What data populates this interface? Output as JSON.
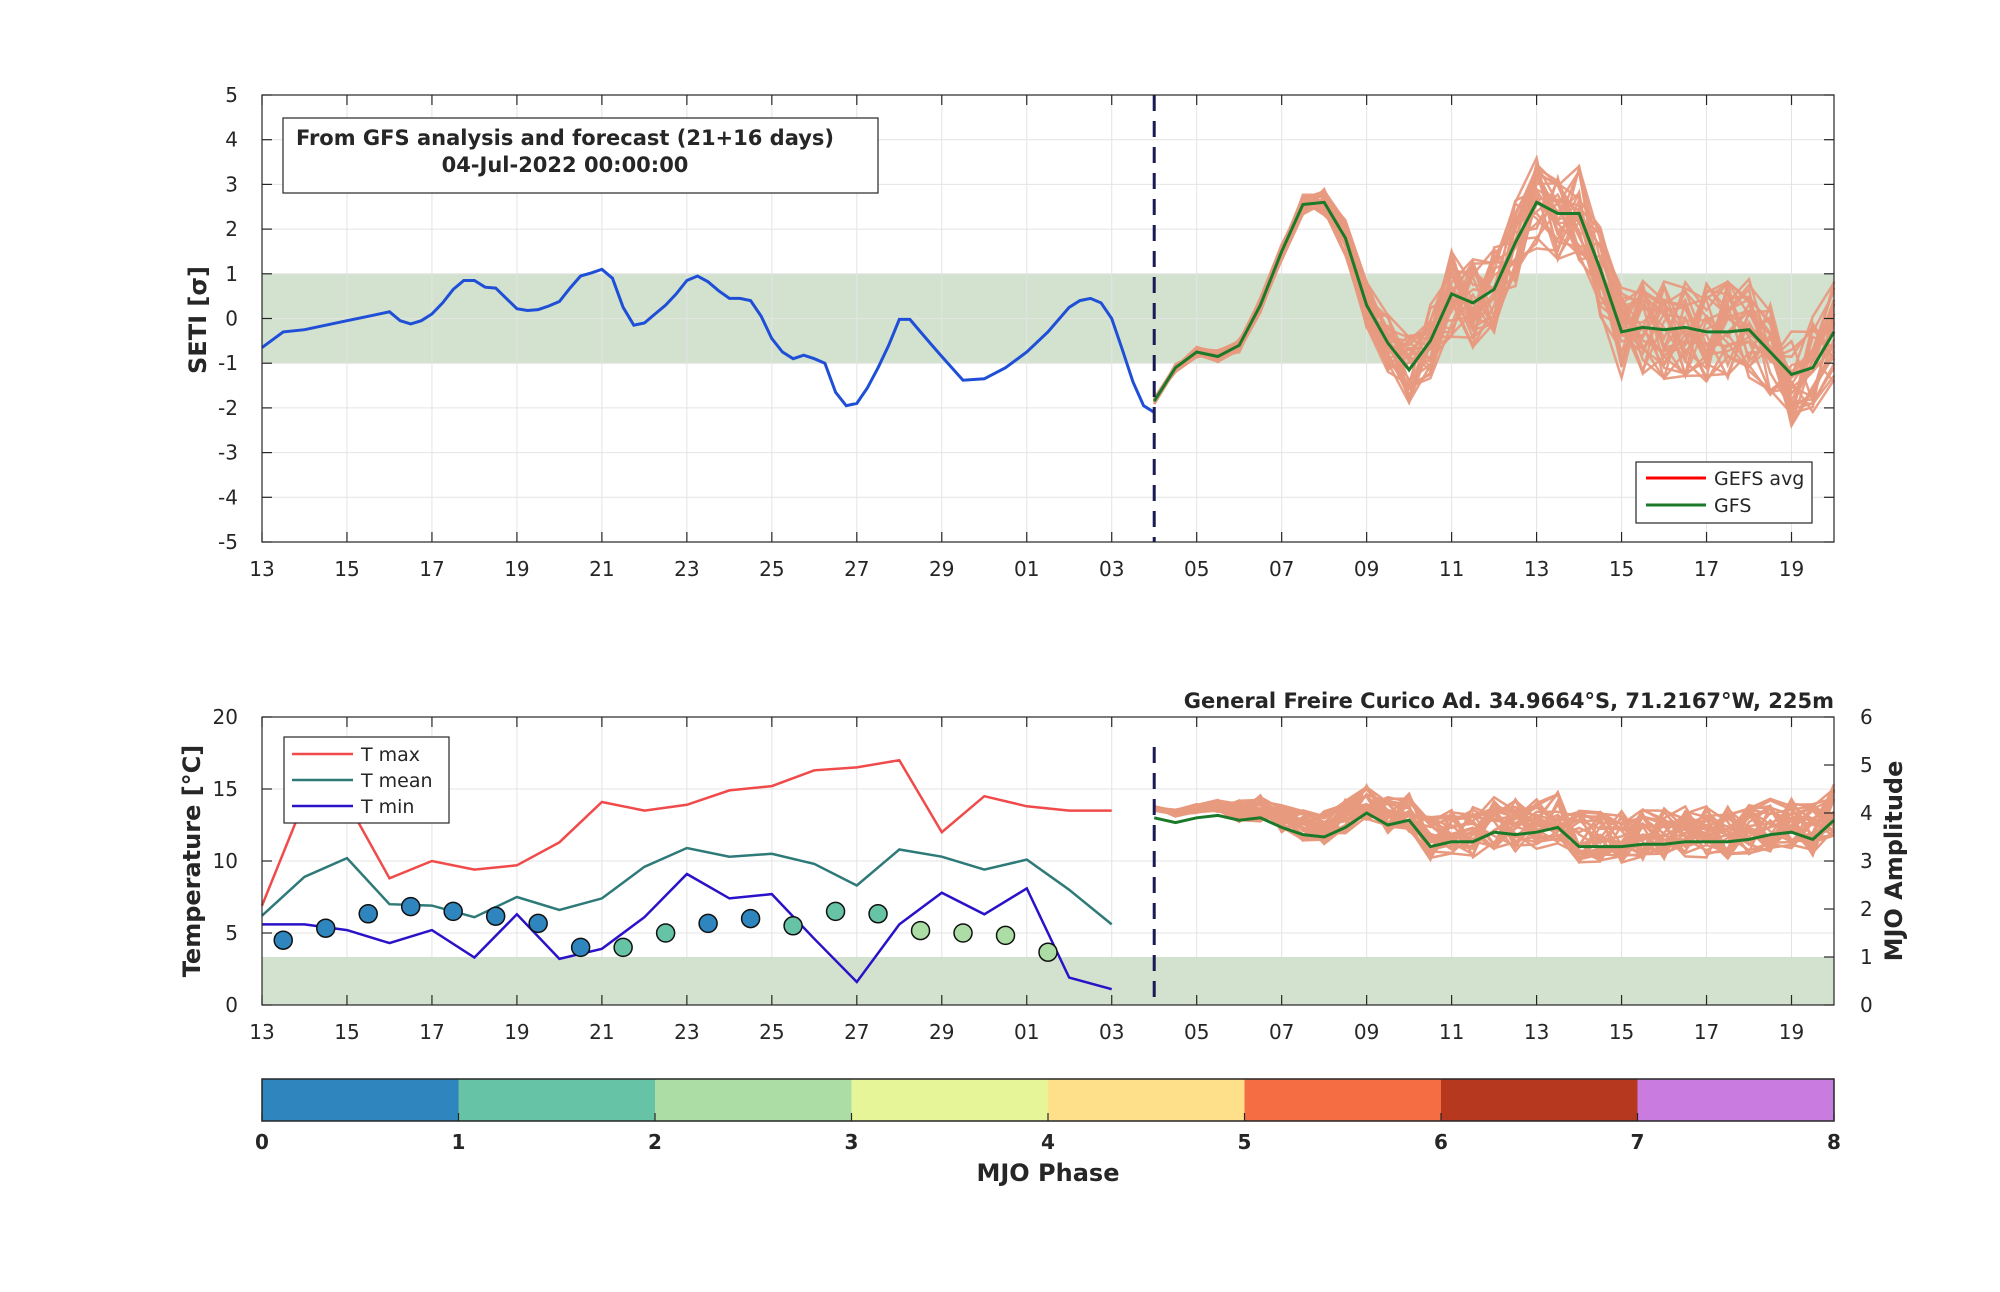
{
  "colors": {
    "history_seti": "#1f4fd6",
    "ensemble": "#e89a7f",
    "gfs": "#1a7a2a",
    "gefs_avg": "#ff0000",
    "band": "#d2e2cf",
    "cutoff_line": "#1a1a55",
    "tmax": "#f04a4a",
    "tmean": "#2e7a78",
    "tmin": "#2a12c8",
    "axis": "#262626",
    "grid": "#e4e4e4"
  },
  "seti_panel": {
    "info_title": "From GFS analysis and forecast (21+16 days)",
    "info_date": "04-Jul-2022 00:00:00",
    "ylabel": "SETI [σ]",
    "legend": [
      {
        "name": "GEFS avg",
        "color": "#ff0000"
      },
      {
        "name": "GFS",
        "color": "#1a7a2a"
      }
    ],
    "x_tick_labels": [
      "13",
      "15",
      "17",
      "19",
      "21",
      "23",
      "25",
      "27",
      "29",
      "01",
      "03",
      "05",
      "07",
      "09",
      "11",
      "13",
      "15",
      "17",
      "19"
    ],
    "y_tick_labels": [
      "-5",
      "-4",
      "-3",
      "-2",
      "-1",
      "0",
      "1",
      "2",
      "3",
      "4",
      "5"
    ]
  },
  "temp_panel": {
    "station": "General Freire Curico Ad. 34.9664°S, 71.2167°W, 225m",
    "ylabel_left": "Temperature [°C]",
    "ylabel_right": "MJO Amplitude",
    "legend": [
      {
        "name": "T max",
        "color": "#f04a4a"
      },
      {
        "name": "T mean",
        "color": "#2e7a78"
      },
      {
        "name": "T min",
        "color": "#2a12c8"
      }
    ],
    "x_tick_labels": [
      "13",
      "15",
      "17",
      "19",
      "21",
      "23",
      "25",
      "27",
      "29",
      "01",
      "03",
      "05",
      "07",
      "09",
      "11",
      "13",
      "15",
      "17",
      "19"
    ],
    "y_left_tick_labels": [
      "0",
      "5",
      "10",
      "15",
      "20"
    ],
    "y_right_tick_labels": [
      "0",
      "1",
      "2",
      "3",
      "4",
      "5",
      "6"
    ]
  },
  "colorbar": {
    "label": "MJO Phase",
    "tick_labels": [
      "0",
      "1",
      "2",
      "3",
      "4",
      "5",
      "6",
      "7",
      "8"
    ],
    "colors": [
      "#2f86be",
      "#66c3a6",
      "#abdda4",
      "#e6f598",
      "#fee08b",
      "#f46d43",
      "#b6391f",
      "#c97be0"
    ]
  },
  "chart_data": [
    {
      "type": "line",
      "name": "SETI",
      "x_unit": "days from 13 Jun 2022 (tick labels are day-of-month)",
      "xlim": [
        0,
        37
      ],
      "ylim": [
        -5,
        5
      ],
      "grid": true,
      "legend_position": "bottom-right",
      "band": [
        -1,
        1
      ],
      "cutoff_x": 21,
      "series": [
        {
          "name": "analysis",
          "x": [
            0,
            0.5,
            1,
            1.5,
            2,
            2.5,
            3,
            3.25,
            3.5,
            3.75,
            4,
            4.25,
            4.5,
            4.75,
            5,
            5.25,
            5.5,
            5.75,
            6,
            6.25,
            6.5,
            6.75,
            7,
            7.25,
            7.5,
            7.75,
            8,
            8.25,
            8.5,
            8.75,
            9,
            9.25,
            9.5,
            9.75,
            10,
            10.25,
            10.5,
            10.75,
            11,
            11.25,
            11.5,
            11.75,
            12,
            12.25,
            12.5,
            12.75,
            13,
            13.25,
            13.5,
            13.75,
            14,
            14.25,
            14.5,
            14.75,
            15,
            15.25,
            15.5,
            15.75,
            16,
            16.5,
            17,
            17.5,
            18,
            18.5,
            19,
            19.25,
            19.5,
            19.75,
            20,
            20.25,
            20.5,
            20.75,
            21
          ],
          "y": [
            -0.65,
            -0.3,
            -0.25,
            -0.15,
            -0.05,
            0.05,
            0.15,
            -0.05,
            -0.12,
            -0.05,
            0.1,
            0.35,
            0.65,
            0.85,
            0.85,
            0.7,
            0.68,
            0.45,
            0.22,
            0.18,
            0.2,
            0.28,
            0.38,
            0.68,
            0.95,
            1.02,
            1.1,
            0.9,
            0.25,
            -0.15,
            -0.1,
            0.1,
            0.3,
            0.55,
            0.85,
            0.95,
            0.82,
            0.62,
            0.45,
            0.45,
            0.4,
            0.05,
            -0.45,
            -0.75,
            -0.9,
            -0.82,
            -0.9,
            -1.0,
            -1.65,
            -1.95,
            -1.9,
            -1.55,
            -1.1,
            -0.6,
            -0.02,
            -0.02,
            -0.3,
            -0.58,
            -0.85,
            -1.38,
            -1.35,
            -1.1,
            -0.75,
            -0.3,
            0.25,
            0.4,
            0.45,
            0.35,
            0.0,
            -0.7,
            -1.42,
            -1.95,
            -2.1
          ]
        },
        {
          "name": "GFS",
          "x": [
            21,
            21.5,
            22,
            22.5,
            23,
            23.5,
            24,
            24.5,
            25,
            25.5,
            26,
            26.5,
            27,
            27.5,
            28,
            28.5,
            29,
            29.5,
            30,
            30.5,
            31,
            31.5,
            32,
            32.5,
            33,
            33.5,
            34,
            34.5,
            35,
            35.5,
            36,
            36.5,
            37
          ],
          "y": [
            -1.85,
            -1.1,
            -0.75,
            -0.85,
            -0.6,
            0.3,
            1.5,
            2.55,
            2.6,
            1.8,
            0.3,
            -0.55,
            -1.15,
            -0.5,
            0.55,
            0.35,
            0.65,
            1.7,
            2.6,
            2.35,
            2.35,
            1.1,
            -0.3,
            -0.2,
            -0.25,
            -0.2,
            -0.3,
            -0.3,
            -0.25,
            -0.75,
            -1.25,
            -1.1,
            -0.3
          ]
        }
      ]
    },
    {
      "type": "line",
      "name": "Temperature and MJO",
      "x_unit": "days from 13 Jun 2022 (tick labels are day-of-month)",
      "xlim": [
        0,
        37
      ],
      "ylim_left": [
        0,
        20
      ],
      "ylim_right": [
        0,
        6
      ],
      "grid": true,
      "legend_position": "top-left",
      "band_mjo_amplitude_below": 1,
      "cutoff_x": 21,
      "series": [
        {
          "name": "T max",
          "x": [
            0,
            1,
            2,
            3,
            4,
            5,
            6,
            7,
            8,
            9,
            10,
            11,
            12,
            13,
            14,
            15,
            16,
            17,
            18,
            19,
            20
          ],
          "y": [
            6.9,
            14.2,
            14.1,
            8.8,
            10.0,
            9.4,
            9.7,
            11.3,
            14.1,
            13.5,
            13.9,
            14.9,
            15.2,
            16.3,
            16.5,
            17.0,
            12.0,
            14.5,
            13.8,
            13.5,
            13.5
          ]
        },
        {
          "name": "T mean",
          "x": [
            0,
            1,
            2,
            3,
            4,
            5,
            6,
            7,
            8,
            9,
            10,
            11,
            12,
            13,
            14,
            15,
            16,
            17,
            18,
            19,
            20
          ],
          "y": [
            6.2,
            8.9,
            10.2,
            7.0,
            6.9,
            6.1,
            7.5,
            6.6,
            7.4,
            9.6,
            10.9,
            10.3,
            10.5,
            9.8,
            8.3,
            10.8,
            10.3,
            9.4,
            10.1,
            8.0,
            5.6
          ]
        },
        {
          "name": "T min",
          "x": [
            0,
            1,
            2,
            3,
            4,
            5,
            6,
            7,
            8,
            9,
            10,
            11,
            12,
            13,
            14,
            15,
            16,
            17,
            18,
            19,
            20
          ],
          "y": [
            5.6,
            5.6,
            5.2,
            4.3,
            5.2,
            3.3,
            6.3,
            3.2,
            3.9,
            6.1,
            9.1,
            7.4,
            7.7,
            4.6,
            1.6,
            5.6,
            7.8,
            6.3,
            8.1,
            1.9,
            1.1
          ]
        },
        {
          "name": "MJO amplitude (ensemble forecast, GFS)",
          "x": [
            21,
            21.5,
            22,
            22.5,
            23,
            23.5,
            24,
            24.5,
            25,
            25.5,
            26,
            26.5,
            27,
            27.5,
            28,
            28.5,
            29,
            29.5,
            30,
            30.5,
            31,
            31.5,
            32,
            32.5,
            33,
            33.5,
            34,
            34.5,
            35,
            35.5,
            36,
            36.5,
            37
          ],
          "y": [
            3.9,
            3.8,
            3.9,
            3.95,
            3.85,
            3.9,
            3.7,
            3.55,
            3.5,
            3.7,
            4.0,
            3.75,
            3.85,
            3.3,
            3.4,
            3.4,
            3.6,
            3.55,
            3.6,
            3.7,
            3.3,
            3.3,
            3.3,
            3.35,
            3.35,
            3.4,
            3.4,
            3.4,
            3.45,
            3.55,
            3.6,
            3.45,
            3.85
          ]
        },
        {
          "name": "MJO phase dots",
          "x": [
            0.5,
            1.5,
            2.5,
            3.5,
            4.5,
            5.5,
            6.5,
            7.5,
            8.5,
            9.5,
            10.5,
            11.5,
            12.5,
            13.5,
            14.5,
            15.5,
            16.5,
            17.5,
            18.5
          ],
          "amplitude": [
            1.35,
            1.6,
            1.9,
            2.05,
            1.95,
            1.85,
            1.7,
            1.2,
            1.2,
            1.5,
            1.7,
            1.8,
            1.65,
            1.95,
            1.9,
            1.55,
            1.5,
            1.45,
            1.1
          ],
          "phase_color": [
            "#2f86be",
            "#2f86be",
            "#2f86be",
            "#2f86be",
            "#2f86be",
            "#2f86be",
            "#2f86be",
            "#2f86be",
            "#66c3a6",
            "#66c3a6",
            "#2f86be",
            "#2f86be",
            "#66c3a6",
            "#66c3a6",
            "#66c3a6",
            "#abdda4",
            "#abdda4",
            "#abdda4",
            "#abdda4"
          ]
        }
      ]
    }
  ]
}
